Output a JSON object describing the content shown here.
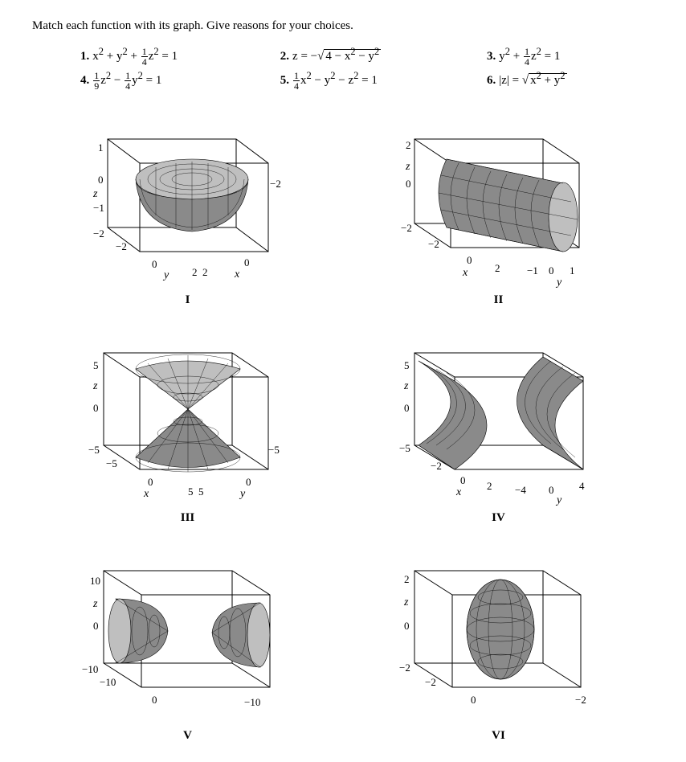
{
  "instruction": "Match each function with its graph. Give reasons for your choices.",
  "equations": [
    {
      "n": "1.",
      "html": "x<sup>2</sup> + y<sup>2</sup> + <span class='frac'><span class='n'>1</span><span class='d'>4</span></span>z<sup>2</sup> = 1"
    },
    {
      "n": "2.",
      "html": "z = −√<span class='sqrt'>4 − x<sup>2</sup> − y<sup>2</sup></span>"
    },
    {
      "n": "3.",
      "html": "y<sup>2</sup> + <span class='frac'><span class='n'>1</span><span class='d'>4</span></span>z<sup>2</sup> = 1"
    },
    {
      "n": "4.",
      "html": "<span class='frac'><span class='n'>1</span><span class='d'>9</span></span>z<sup>2</sup> − <span class='frac'><span class='n'>1</span><span class='d'>4</span></span>y<sup>2</sup> = 1"
    },
    {
      "n": "5.",
      "html": "<span class='frac'><span class='n'>1</span><span class='d'>4</span></span>x<sup>2</sup> − y<sup>2</sup> − z<sup>2</sup> = 1"
    },
    {
      "n": "6.",
      "html": "|z| = √<span class='sqrt'>x<sup>2</sup> + y<sup>2</sup></span>"
    }
  ],
  "plots": {
    "I": {
      "caption": "I",
      "z_top": "1",
      "z_mid": "0",
      "z_low": "−1",
      "z_bot": "−2",
      "left_tick": "−2",
      "axis_r": "2",
      "axis_r2": "2",
      "extra_tick": "−2",
      "x_zero": "0",
      "y_zero": "0"
    },
    "II": {
      "caption": "II",
      "z_top": "2",
      "z_mid": "0",
      "z_bot": "−2",
      "left_tick": "−2",
      "x_zero": "0",
      "x_right": "2",
      "y_ticks": [
        "−1",
        "0",
        "1"
      ]
    },
    "III": {
      "caption": "III",
      "z_top": "5",
      "z_mid": "0",
      "z_bot": "−5",
      "left_tick": "−5",
      "right_tick": "−5",
      "axis_r": "5",
      "axis_r2": "5",
      "x_zero": "0",
      "y_zero": "0"
    },
    "IV": {
      "caption": "IV",
      "z_top": "5",
      "z_mid": "0",
      "z_bot": "−5",
      "left_tick": "−2",
      "x_right": "2",
      "x_zero": "0",
      "y_ticks": [
        "−4",
        "0",
        "4"
      ]
    },
    "V": {
      "caption": "V",
      "z_top": "10",
      "z_mid": "0",
      "z_bot": "−10",
      "left_tick": "−10",
      "x_zero": "0",
      "right_tick": "−10"
    },
    "VI": {
      "caption": "VI",
      "z_top": "2",
      "z_mid": "0",
      "z_bot": "−2",
      "left_tick": "−2",
      "x_zero": "0",
      "right_tick": "−2"
    }
  },
  "axis_labels": {
    "x": "x",
    "y": "y",
    "z": "z"
  },
  "colors": {
    "surface_light": "#bfbfbf",
    "surface_dark": "#8a8a8a",
    "line": "#000000",
    "background": "#ffffff"
  },
  "typography": {
    "body_family": "Times New Roman",
    "body_size_pt": 11,
    "caption_weight": "bold"
  }
}
